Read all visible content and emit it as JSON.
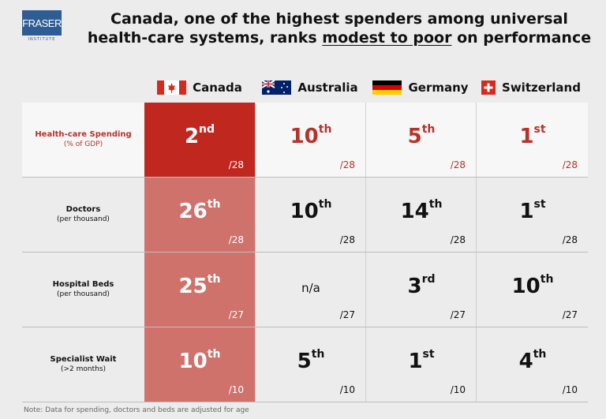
{
  "logo": {
    "name": "FRASER",
    "sub": "INSTITUTE",
    "color": "#2f5c93"
  },
  "title": {
    "line1": "Canada, one of the highest spenders among universal",
    "line2_pre": "health-care systems, ranks ",
    "line2_emph": "modest to poor",
    "line2_post": " on performance"
  },
  "colors": {
    "accent": "#c0281f",
    "canada_column": "#cf6a62",
    "background": "#ececec"
  },
  "chart_data": {
    "type": "table",
    "columns": [
      {
        "name": "Canada",
        "icon": "canada-flag-icon"
      },
      {
        "name": "Australia",
        "icon": "australia-flag-icon"
      },
      {
        "name": "Germany",
        "icon": "germany-flag-icon"
      },
      {
        "name": "Switzerland",
        "icon": "switzerland-flag-icon"
      }
    ],
    "rows": [
      {
        "label": "Health-care Spending",
        "sub": "(% of GDP)",
        "cells": [
          {
            "num": "2",
            "suf": "nd",
            "of": "/28"
          },
          {
            "num": "10",
            "suf": "th",
            "of": "/28"
          },
          {
            "num": "5",
            "suf": "th",
            "of": "/28"
          },
          {
            "num": "1",
            "suf": "st",
            "of": "/28"
          }
        ]
      },
      {
        "label": "Doctors",
        "sub": "(per thousand)",
        "cells": [
          {
            "num": "26",
            "suf": "th",
            "of": "/28"
          },
          {
            "num": "10",
            "suf": "th",
            "of": "/28"
          },
          {
            "num": "14",
            "suf": "th",
            "of": "/28"
          },
          {
            "num": "1",
            "suf": "st",
            "of": "/28"
          }
        ]
      },
      {
        "label": "Hospital Beds",
        "sub": "(per thousand)",
        "cells": [
          {
            "num": "25",
            "suf": "th",
            "of": "/27"
          },
          {
            "num": "n/a",
            "suf": "",
            "of": "/27"
          },
          {
            "num": "3",
            "suf": "rd",
            "of": "/27"
          },
          {
            "num": "10",
            "suf": "th",
            "of": "/27"
          }
        ]
      },
      {
        "label": "Specialist Wait",
        "sub": "(>2 months)",
        "cells": [
          {
            "num": "10",
            "suf": "th",
            "of": "/10"
          },
          {
            "num": "5",
            "suf": "th",
            "of": "/10"
          },
          {
            "num": "1",
            "suf": "st",
            "of": "/10"
          },
          {
            "num": "4",
            "suf": "th",
            "of": "/10"
          }
        ]
      }
    ]
  },
  "note": "Note: Data for spending, doctors and beds are adjusted for age"
}
